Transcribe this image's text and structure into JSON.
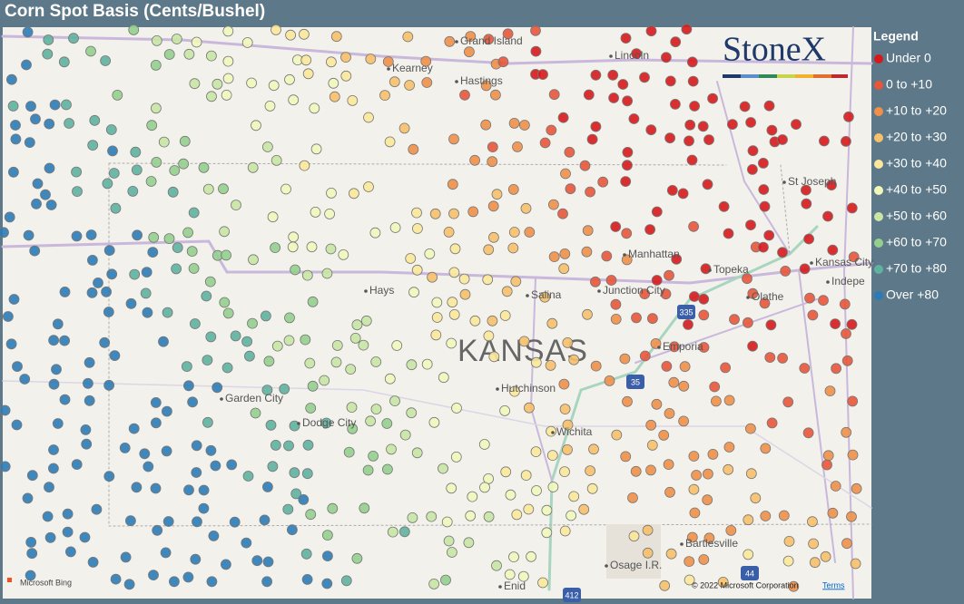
{
  "header": {
    "title": "Corn Spot Basis (Cents/Bushel)"
  },
  "legend": {
    "title": "Legend",
    "items": [
      {
        "label": "Under 0",
        "color": "#d7191c"
      },
      {
        "label": "0 to +10",
        "color": "#e8553a"
      },
      {
        "label": "+10 to +20",
        "color": "#f0904a"
      },
      {
        "label": "+20 to +30",
        "color": "#f7c06a"
      },
      {
        "label": "+30 to +40",
        "color": "#fbe89a"
      },
      {
        "label": "+40 to +50",
        "color": "#f1f7bb"
      },
      {
        "label": "+50 to +60",
        "color": "#c8e6a4"
      },
      {
        "label": "+60 to +70",
        "color": "#94cf8e"
      },
      {
        "label": "+70 to +80",
        "color": "#5fb1a0"
      },
      {
        "label": "Over +80",
        "color": "#2c7bb6"
      }
    ]
  },
  "map": {
    "logo": "StoneX",
    "region_label": "KANSAS",
    "places": [
      "Grand Island",
      "Kearney",
      "Hastings",
      "Lincoln",
      "St Joseph",
      "Manhattan",
      "Topeka",
      "Kansas City",
      "Indepe",
      "Hays",
      "Salina",
      "Junction City",
      "Olathe",
      "Emporia",
      "Garden City",
      "Dodge City",
      "Hutchinson",
      "Wichita",
      "Bartlesville",
      "Osage I.R.",
      "Enid"
    ],
    "shields": [
      "335",
      "35",
      "44",
      "412"
    ]
  },
  "attribution": {
    "provider": "Microsoft Bing",
    "copyright": "© 2022 Microsoft Corporation",
    "terms": "Terms"
  }
}
